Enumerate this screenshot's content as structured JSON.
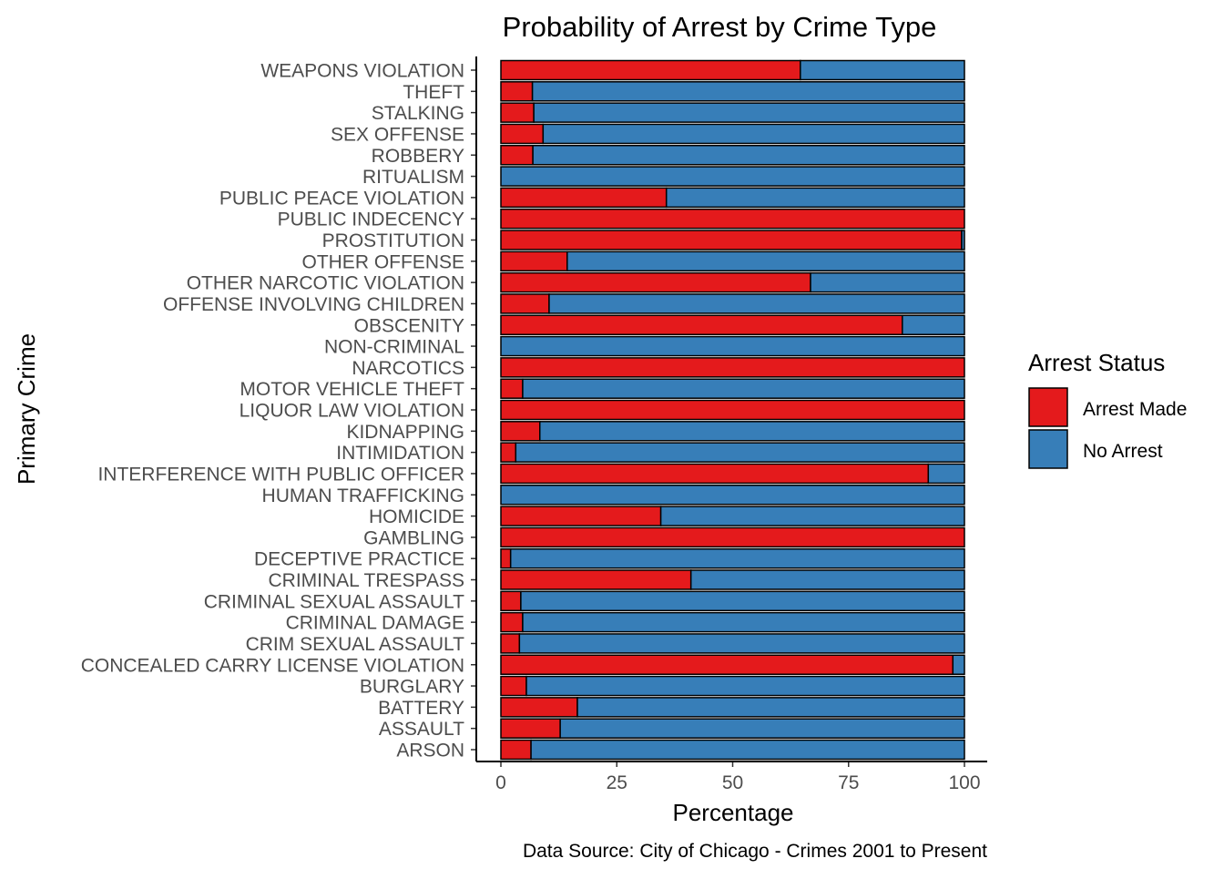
{
  "chart_data": {
    "type": "bar",
    "orientation": "horizontal",
    "stacked": true,
    "title": "Probability of Arrest by Crime Type",
    "xlabel": "Percentage",
    "ylabel": "Primary Crime",
    "caption": "Data Source: City of Chicago - Crimes 2001 to Present",
    "xlim": [
      0,
      100
    ],
    "xticks": [
      "0",
      "25",
      "50",
      "75",
      "100"
    ],
    "grid": false,
    "legend": {
      "title": "Arrest Status",
      "placement": "right",
      "entries": [
        {
          "label": "Arrest Made",
          "color": "#E41A1C"
        },
        {
          "label": "No Arrest",
          "color": "#377EB8"
        }
      ]
    },
    "categories": [
      "ARSON",
      "ASSAULT",
      "BATTERY",
      "BURGLARY",
      "CONCEALED CARRY LICENSE VIOLATION",
      "CRIM SEXUAL ASSAULT",
      "CRIMINAL DAMAGE",
      "CRIMINAL SEXUAL ASSAULT",
      "CRIMINAL TRESPASS",
      "DECEPTIVE PRACTICE",
      "GAMBLING",
      "HOMICIDE",
      "HUMAN TRAFFICKING",
      "INTERFERENCE WITH PUBLIC OFFICER",
      "INTIMIDATION",
      "KIDNAPPING",
      "LIQUOR LAW VIOLATION",
      "MOTOR VEHICLE THEFT",
      "NARCOTICS",
      "NON-CRIMINAL",
      "OBSCENITY",
      "OFFENSE INVOLVING CHILDREN",
      "OTHER NARCOTIC VIOLATION",
      "OTHER OFFENSE",
      "PROSTITUTION",
      "PUBLIC INDECENCY",
      "PUBLIC PEACE VIOLATION",
      "RITUALISM",
      "ROBBERY",
      "SEX OFFENSE",
      "STALKING",
      "THEFT",
      "WEAPONS VIOLATION"
    ],
    "series": [
      {
        "name": "Arrest Made",
        "color": "#E41A1C",
        "values": [
          6.5,
          12.8,
          16.5,
          5.5,
          97.5,
          4.0,
          4.7,
          4.3,
          41.0,
          2.1,
          100.0,
          34.5,
          0.0,
          92.2,
          3.2,
          8.4,
          100.0,
          4.7,
          100.0,
          0.0,
          86.6,
          10.4,
          66.8,
          14.3,
          99.4,
          100.0,
          35.7,
          0.0,
          6.9,
          9.1,
          7.1,
          6.8,
          64.6
        ]
      },
      {
        "name": "No Arrest",
        "color": "#377EB8",
        "values": [
          93.5,
          87.2,
          83.5,
          94.5,
          2.5,
          96.0,
          95.3,
          95.7,
          59.0,
          97.9,
          0.0,
          65.5,
          100.0,
          7.8,
          96.8,
          91.6,
          0.0,
          95.3,
          0.0,
          100.0,
          13.4,
          89.6,
          33.2,
          85.7,
          0.6,
          0.0,
          64.3,
          100.0,
          93.1,
          90.9,
          92.9,
          93.2,
          35.4
        ]
      }
    ]
  }
}
